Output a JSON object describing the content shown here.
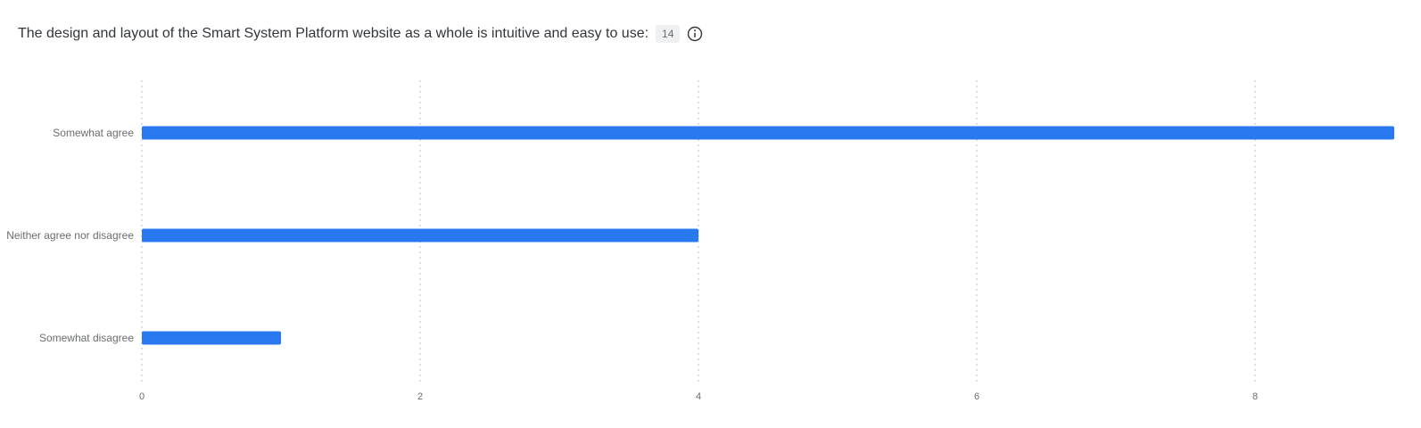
{
  "header": {
    "question": "The design and layout of the Smart System Platform website as a whole is intuitive and easy to use:",
    "response_count": "14",
    "info_icon": "info-icon"
  },
  "colors": {
    "bar": "#2878f0",
    "grid": "#d0d3d6",
    "text": "#32363a",
    "label": "#6a6d70"
  },
  "chart_data": {
    "type": "bar",
    "orientation": "horizontal",
    "categories": [
      "Somewhat agree",
      "Neither agree nor disagree",
      "Somewhat disagree"
    ],
    "values": [
      9,
      4,
      1
    ],
    "xticks": [
      0,
      2,
      4,
      6,
      8
    ],
    "xlim": [
      0,
      9
    ],
    "grid": true,
    "title": "",
    "xlabel": "",
    "ylabel": ""
  }
}
